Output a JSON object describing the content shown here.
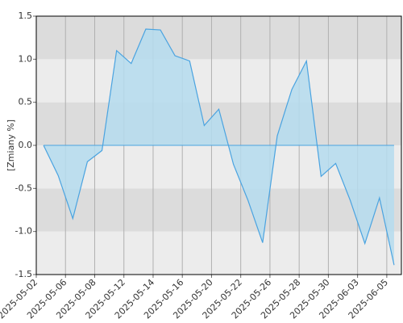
{
  "chart_data": {
    "type": "area",
    "y_label": "[Zmiany %]",
    "categories": [
      "2025-05-02",
      null,
      "2025-05-06",
      null,
      "2025-05-08",
      null,
      "2025-05-12",
      null,
      "2025-05-14",
      null,
      "2025-05-16",
      null,
      "2025-05-20",
      null,
      "2025-05-22",
      null,
      "2025-05-26",
      null,
      "2025-05-28",
      null,
      "2025-05-30",
      null,
      "2025-06-03",
      null,
      "2025-06-05"
    ],
    "values": [
      0,
      -0.35,
      -0.85,
      -0.19,
      -0.06,
      1.1,
      0.95,
      1.35,
      1.34,
      1.04,
      0.98,
      0.23,
      0.42,
      -0.22,
      -0.64,
      -1.13,
      0.11,
      0.65,
      0.98,
      -0.36,
      -0.21,
      -0.64,
      -1.14,
      -0.61,
      -1.39
    ],
    "color": "#4aa3e0",
    "fill": "#b5dcee",
    "ylim": [
      -1.5,
      1.5
    ],
    "yticks": [
      {
        "value": -1.5,
        "label": "-1.5"
      },
      {
        "value": -1,
        "label": "-1.0"
      },
      {
        "value": -0.5,
        "label": "-0.5"
      },
      {
        "value": 0,
        "label": "0.0"
      },
      {
        "value": 0.5,
        "label": "0.5"
      },
      {
        "value": 1,
        "label": "1.0"
      },
      {
        "value": 1.5,
        "label": "1.5"
      }
    ],
    "grid": true
  }
}
